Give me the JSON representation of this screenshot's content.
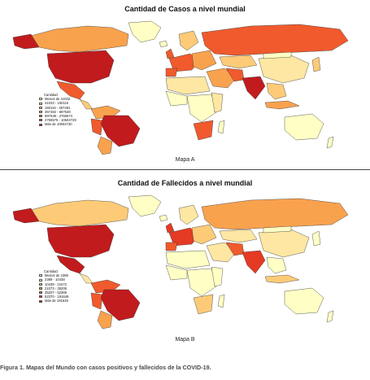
{
  "map_a": {
    "title": "Cantidad de Casos a nivel mundial",
    "label": "Mapa A",
    "legend": {
      "title": "Cantidad",
      "items": [
        {
          "label": "Menos de 41032",
          "color": "#FFFFC5"
        },
        {
          "label": "41033 - 150115",
          "color": "#FEE7A3"
        },
        {
          "label": "150116 - 357481",
          "color": "#FDCB78"
        },
        {
          "label": "357482 - 697538",
          "color": "#F9A24E"
        },
        {
          "label": "697539 - 2766574",
          "color": "#F05A2D"
        },
        {
          "label": "2766575 - 10504729",
          "color": "#E53A24"
        },
        {
          "label": "Más de 10504730",
          "color": "#C11B1E"
        }
      ]
    }
  },
  "map_b": {
    "title": "Cantidad de Fallecidos a nivel mundial",
    "label": "Mapa B",
    "legend": {
      "title": "Cantidad",
      "items": [
        {
          "label": "Menos de 2389",
          "color": "#FFFFC5"
        },
        {
          "label": "2389 - 10438",
          "color": "#FEE7A3"
        },
        {
          "label": "10439 - 21072",
          "color": "#FDCB78"
        },
        {
          "label": "21073 - 35206",
          "color": "#F9A24E"
        },
        {
          "label": "35207 - 52369",
          "color": "#F05A2D"
        },
        {
          "label": "52370 - 191649",
          "color": "#E53A24"
        },
        {
          "label": "Más de 191649",
          "color": "#C11B1E"
        }
      ]
    }
  },
  "caption": "Figura 1. Mapas del Mundo con casos positivos y fallecidos de la COVID-19."
}
